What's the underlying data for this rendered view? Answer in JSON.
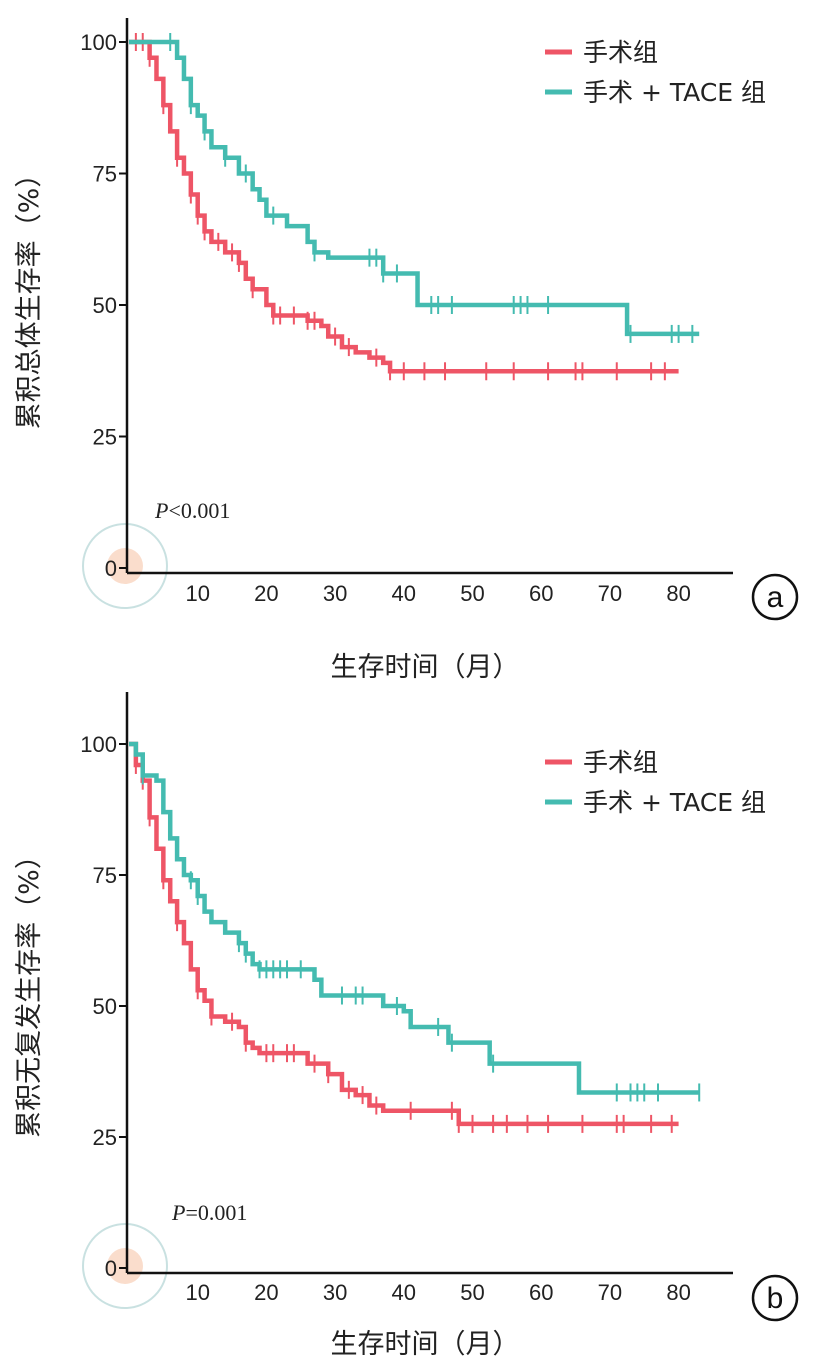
{
  "chart_data": [
    {
      "type": "line",
      "panel_label": "a",
      "xlabel": "生存时间（月）",
      "ylabel": "累积总体生存率（%）",
      "xlim": [
        0,
        85
      ],
      "ylim": [
        0,
        110
      ],
      "xticks": [
        0,
        10,
        20,
        30,
        40,
        50,
        60,
        70,
        80
      ],
      "yticks": [
        0,
        25,
        50,
        75,
        100
      ],
      "annotation_italic": "P",
      "annotation_rest": "<0.001",
      "legend_position": "top-right",
      "series": [
        {
          "name": "手术组",
          "color": "#ee5566",
          "points": [
            [
              0,
              100
            ],
            [
              2,
              100
            ],
            [
              3,
              97
            ],
            [
              4,
              93
            ],
            [
              5,
              88
            ],
            [
              6,
              83
            ],
            [
              7,
              78
            ],
            [
              8,
              75
            ],
            [
              9,
              71
            ],
            [
              10,
              67
            ],
            [
              11,
              64
            ],
            [
              12,
              62
            ],
            [
              14,
              60
            ],
            [
              16,
              58
            ],
            [
              17,
              55
            ],
            [
              18,
              53
            ],
            [
              20,
              50
            ],
            [
              21,
              48
            ],
            [
              25,
              48
            ],
            [
              26,
              47
            ],
            [
              28,
              46
            ],
            [
              29,
              44
            ],
            [
              31,
              42
            ],
            [
              33,
              41
            ],
            [
              35,
              40
            ],
            [
              37,
              39
            ],
            [
              38,
              37.4
            ],
            [
              80,
              37.4
            ]
          ],
          "censored": [
            1,
            2,
            3,
            5,
            7,
            9,
            10,
            11,
            13,
            15,
            16,
            18,
            21,
            22,
            24,
            26,
            27,
            30,
            32,
            36,
            38,
            40,
            43,
            46,
            52,
            56,
            61,
            65,
            66,
            71,
            76,
            78
          ]
        },
        {
          "name": "手术 + TACE 组",
          "color": "#44bbb0",
          "points": [
            [
              0,
              100
            ],
            [
              6,
              100
            ],
            [
              7,
              97
            ],
            [
              8,
              93
            ],
            [
              9,
              88
            ],
            [
              10,
              86
            ],
            [
              11,
              83
            ],
            [
              12,
              80
            ],
            [
              14,
              78
            ],
            [
              16,
              75
            ],
            [
              18,
              72
            ],
            [
              19,
              70
            ],
            [
              20,
              67
            ],
            [
              23,
              65
            ],
            [
              26,
              62
            ],
            [
              27,
              60
            ],
            [
              29,
              59
            ],
            [
              36,
              59
            ],
            [
              37,
              56
            ],
            [
              41,
              56
            ],
            [
              42,
              50
            ],
            [
              72,
              50
            ],
            [
              72.5,
              44.5
            ],
            [
              83,
              44.5
            ]
          ],
          "censored": [
            6,
            9,
            11,
            14,
            17,
            21,
            27,
            35,
            36,
            37,
            39,
            44,
            45,
            47,
            56,
            57,
            58,
            61,
            73,
            79,
            80,
            82
          ]
        }
      ]
    },
    {
      "type": "line",
      "panel_label": "b",
      "xlabel": "生存时间（月）",
      "ylabel": "累积无复发生存率（%）",
      "xlim": [
        0,
        85
      ],
      "ylim": [
        0,
        110
      ],
      "xticks": [
        0,
        10,
        20,
        30,
        40,
        50,
        60,
        70,
        80
      ],
      "yticks": [
        0,
        25,
        50,
        75,
        100
      ],
      "annotation_italic": "P",
      "annotation_rest": "=0.001",
      "legend_position": "top-right",
      "series": [
        {
          "name": "手术组",
          "color": "#ee5566",
          "points": [
            [
              0,
              100
            ],
            [
              1,
              96
            ],
            [
              2,
              93
            ],
            [
              3,
              86
            ],
            [
              4,
              80
            ],
            [
              5,
              74
            ],
            [
              6,
              70
            ],
            [
              7,
              66
            ],
            [
              8,
              62
            ],
            [
              9,
              57
            ],
            [
              10,
              53
            ],
            [
              11,
              51
            ],
            [
              12,
              48
            ],
            [
              14,
              47
            ],
            [
              16,
              46
            ],
            [
              17,
              43
            ],
            [
              18,
              42
            ],
            [
              19,
              41
            ],
            [
              24,
              41
            ],
            [
              26,
              39
            ],
            [
              29,
              37
            ],
            [
              31,
              34
            ],
            [
              33,
              33
            ],
            [
              35,
              31
            ],
            [
              37,
              30
            ],
            [
              47,
              30
            ],
            [
              48,
              27.5
            ],
            [
              80,
              27.5
            ]
          ],
          "censored": [
            1,
            2,
            3,
            5,
            7,
            10,
            12,
            15,
            17,
            20,
            21,
            23,
            24,
            27,
            29,
            32,
            34,
            36,
            41,
            47,
            48,
            50,
            53,
            55,
            58,
            61,
            66,
            71,
            72,
            76,
            79
          ]
        },
        {
          "name": "手术 + TACE 组",
          "color": "#44bbb0",
          "points": [
            [
              0,
              100
            ],
            [
              1,
              98
            ],
            [
              2,
              94
            ],
            [
              4,
              93
            ],
            [
              5,
              87
            ],
            [
              6,
              82
            ],
            [
              7,
              78
            ],
            [
              8,
              75
            ],
            [
              9,
              74
            ],
            [
              10,
              71
            ],
            [
              11,
              68
            ],
            [
              12,
              66
            ],
            [
              14,
              64
            ],
            [
              16,
              62
            ],
            [
              17,
              60
            ],
            [
              18,
              58
            ],
            [
              19,
              57
            ],
            [
              25,
              57
            ],
            [
              27,
              55
            ],
            [
              28,
              52
            ],
            [
              36,
              52
            ],
            [
              37,
              50
            ],
            [
              40,
              49
            ],
            [
              41,
              46
            ],
            [
              46,
              46
            ],
            [
              46.5,
              43
            ],
            [
              52,
              43
            ],
            [
              52.5,
              39
            ],
            [
              65,
              39
            ],
            [
              65.5,
              33.5
            ],
            [
              83,
              33.5
            ]
          ],
          "censored": [
            2,
            9,
            10,
            16,
            17,
            19,
            20,
            21,
            22,
            23,
            25,
            31,
            33,
            34,
            39,
            45,
            47,
            53,
            71,
            73,
            74,
            75,
            77,
            83
          ]
        }
      ]
    }
  ]
}
